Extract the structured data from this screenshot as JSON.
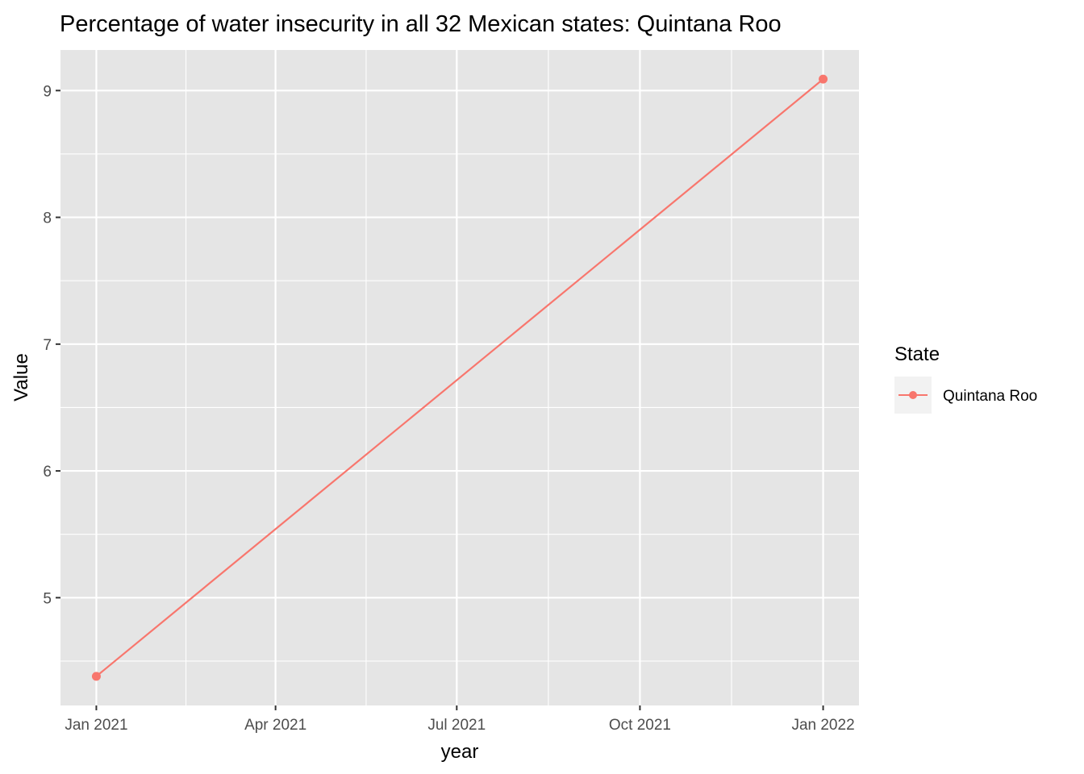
{
  "chart_data": {
    "type": "line",
    "title": "Percentage of water insecurity in all 32 Mexican states: Quintana Roo",
    "xlabel": "year",
    "ylabel": "Value",
    "x_ticks": [
      "2021-01-01",
      "2021-04-01",
      "2021-07-01",
      "2021-10-01",
      "2022-01-01"
    ],
    "x_tick_labels": [
      "Jan 2021",
      "Apr 2021",
      "Jul 2021",
      "Oct 2021",
      "Jan 2022"
    ],
    "y_ticks": [
      5,
      6,
      7,
      8,
      9
    ],
    "y_tick_labels": [
      "5",
      "6",
      "7",
      "8",
      "9"
    ],
    "xlim": [
      "2020-12-14",
      "2022-01-19"
    ],
    "ylim": [
      4.15,
      9.32
    ],
    "grid": true,
    "legend": {
      "title": "State",
      "placement": "right"
    },
    "series": [
      {
        "name": "Quintana Roo",
        "color": "#F8766D",
        "x": [
          "2021-01-01",
          "2022-01-01"
        ],
        "y": [
          4.38,
          9.09
        ]
      }
    ]
  }
}
